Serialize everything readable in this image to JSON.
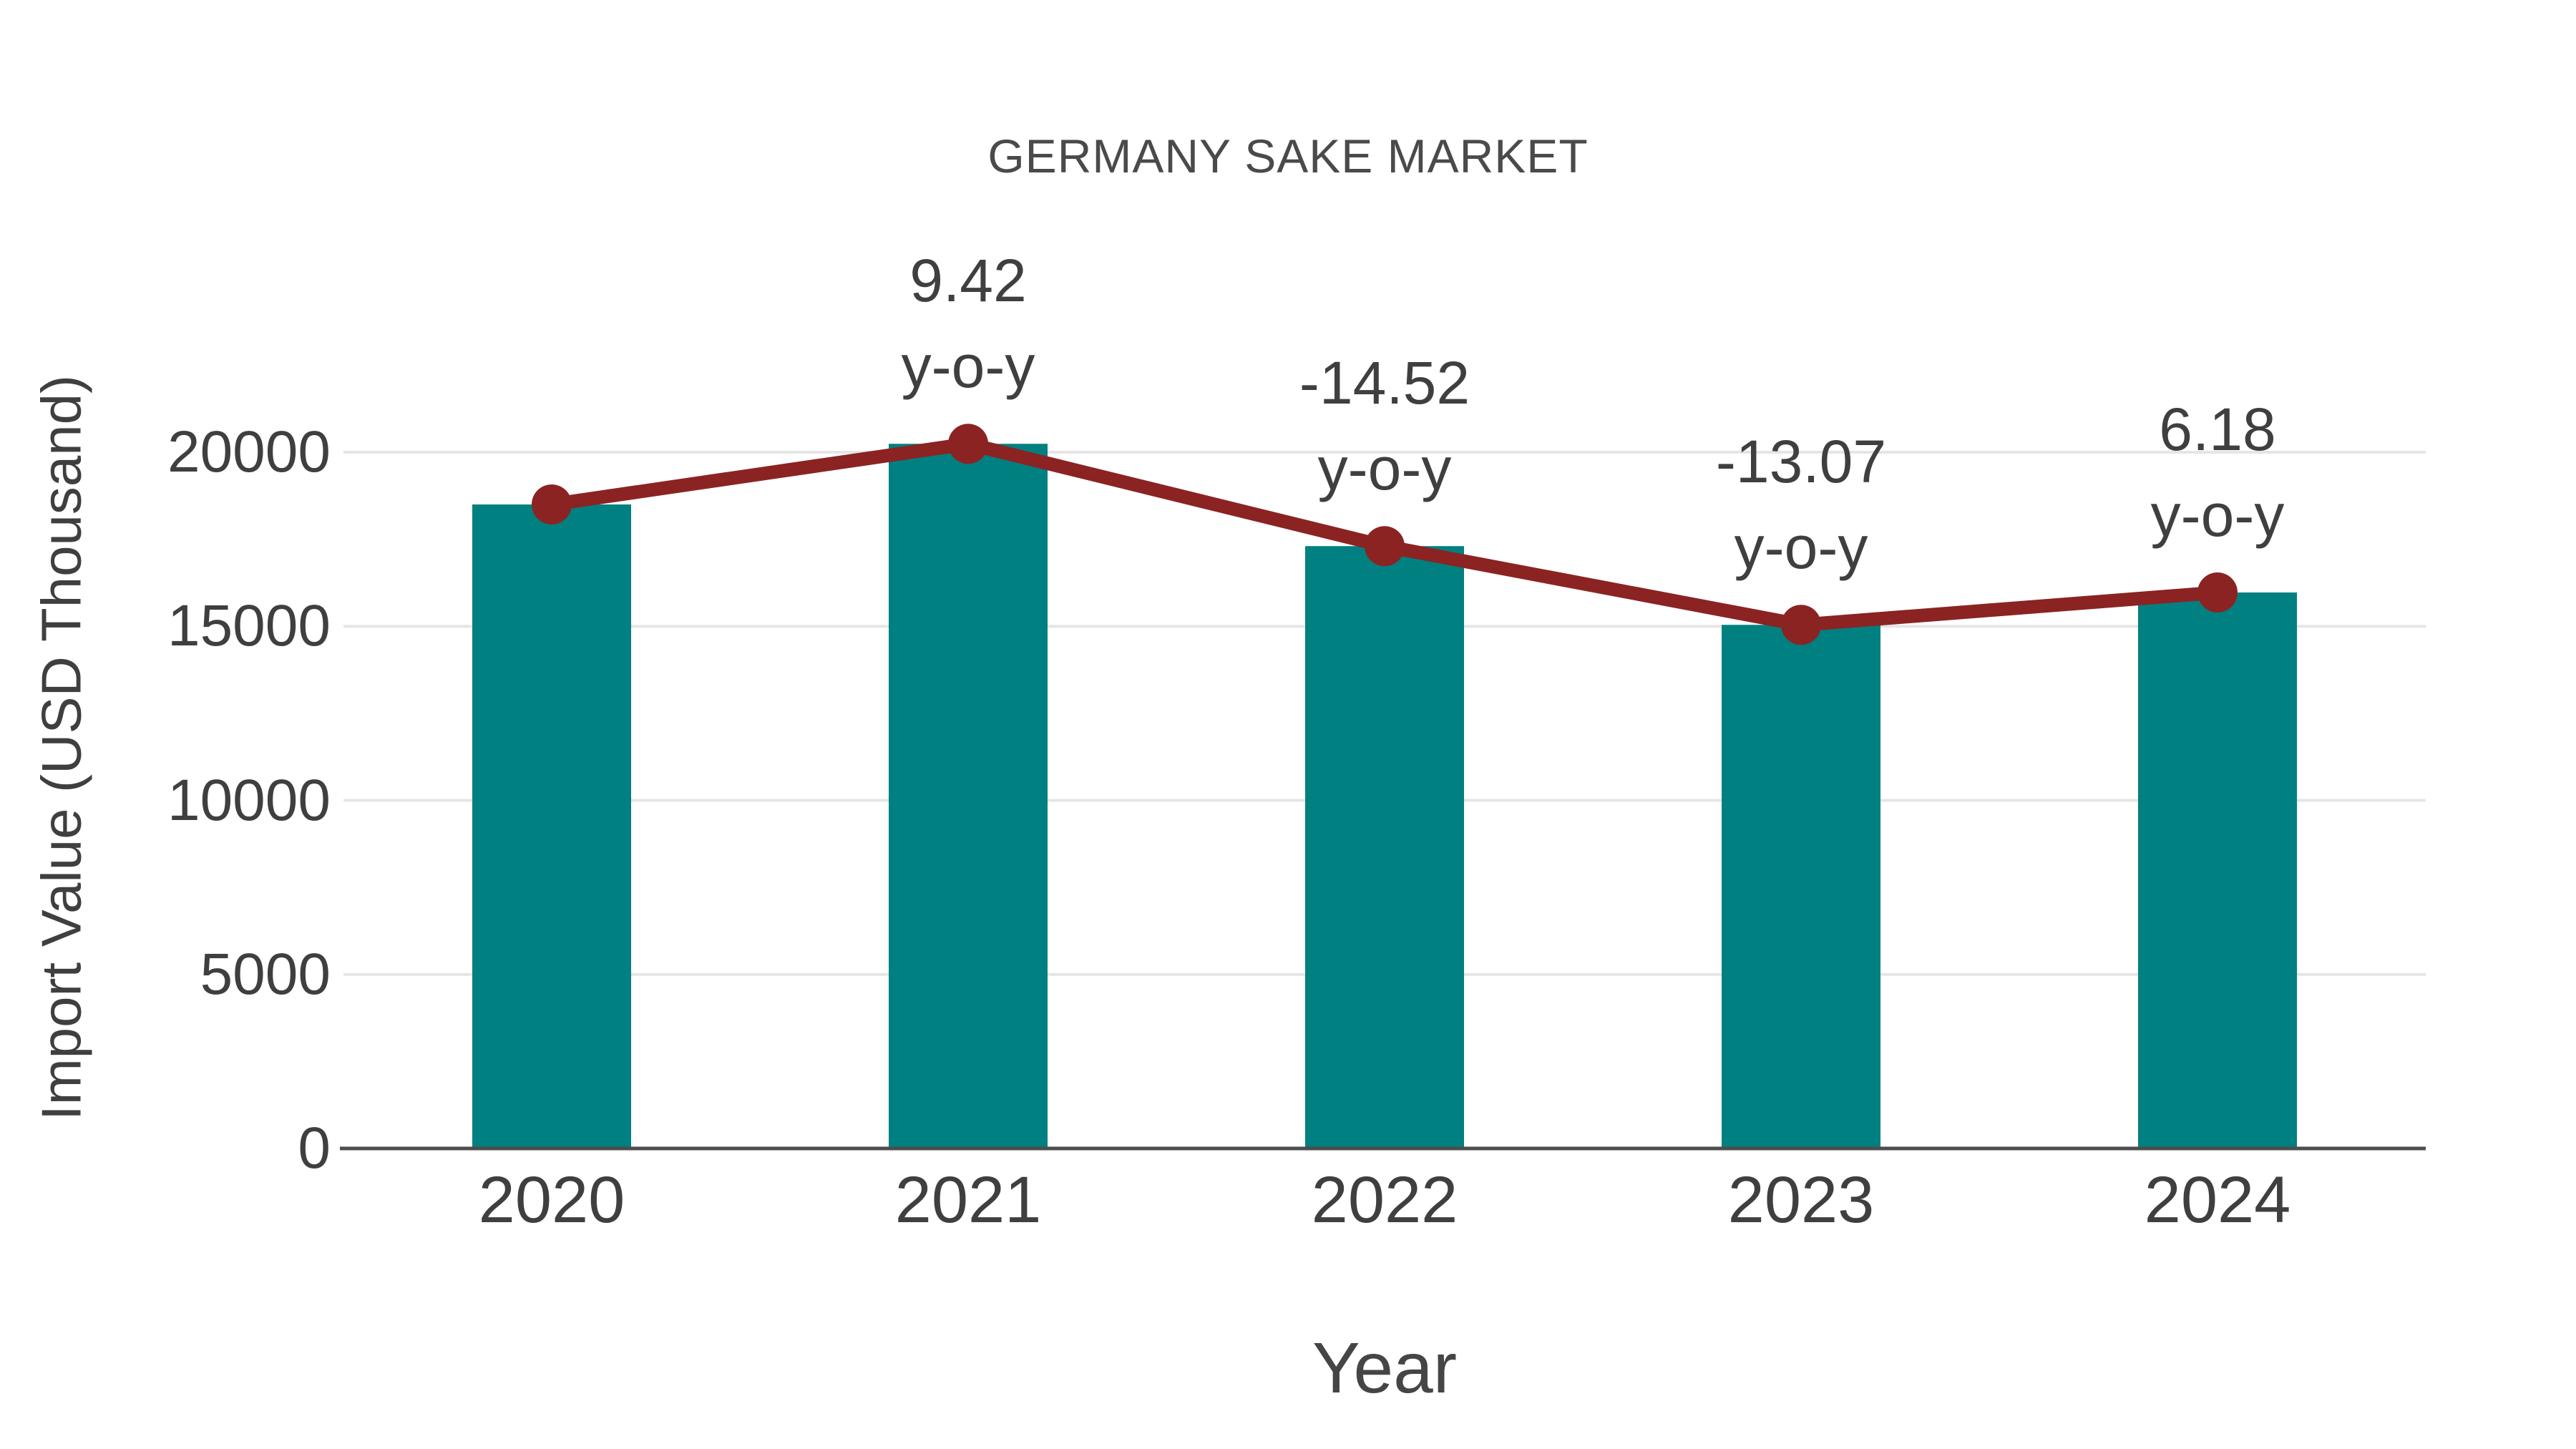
{
  "chart_data": {
    "type": "bar",
    "title": "GERMANY SAKE MARKET",
    "xlabel": "Year",
    "ylabel": "Import Value (USD Thousand)",
    "categories": [
      "2020",
      "2021",
      "2022",
      "2023",
      "2024"
    ],
    "series": [
      {
        "name": "Import Value",
        "type": "bar",
        "color": "#008080",
        "values": [
          18500,
          20242,
          17303,
          15041,
          15971
        ]
      },
      {
        "name": "Import Value trend",
        "type": "line",
        "color": "#8B2323",
        "values": [
          18500,
          20242,
          17303,
          15041,
          15971
        ]
      }
    ],
    "annotations": [
      null,
      {
        "value": "9.42",
        "suffix": "y-o-y"
      },
      {
        "value": "-14.52",
        "suffix": "y-o-y"
      },
      {
        "value": "-13.07",
        "suffix": "y-o-y"
      },
      {
        "value": "6.18",
        "suffix": "y-o-y"
      }
    ],
    "ytick_labels": [
      "0",
      "5000",
      "10000",
      "15000",
      "20000"
    ],
    "ytick_values": [
      0,
      5000,
      10000,
      15000,
      20000
    ],
    "ylim": [
      0,
      20000
    ],
    "grid": "horizontal",
    "legend": "none",
    "colors": {
      "bar": "#008080",
      "line": "#8B2323",
      "gridline": "#e5e5e5",
      "axis": "#4d4d4d",
      "text": "#3f3f3f"
    }
  }
}
